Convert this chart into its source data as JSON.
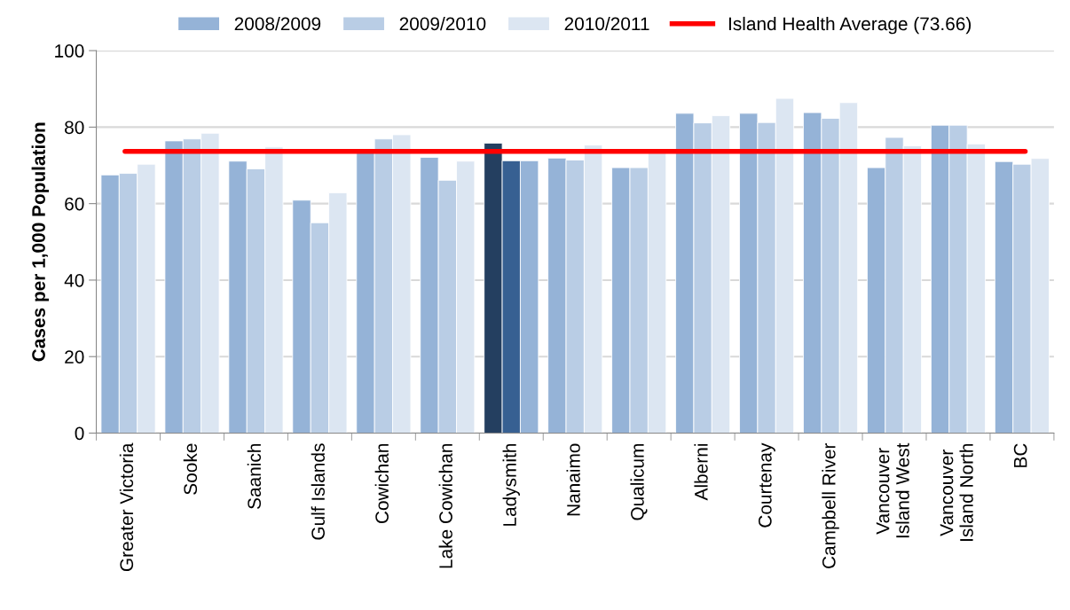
{
  "chart_data": {
    "type": "bar",
    "ylabel": "Cases per 1,000 Population",
    "categories": [
      "Greater Victoria",
      "Sooke",
      "Saanich",
      "Gulf Islands",
      "Cowichan",
      "Lake Cowichan",
      "Ladysmith",
      "Nanaimo",
      "Qualicum",
      "Alberni",
      "Courtenay",
      "Campbell River",
      "Vancouver\nIsland West",
      "Vancouver\nIsland North",
      "BC"
    ],
    "series": [
      {
        "name": "2008/2009",
        "color": "#95b3d7",
        "colors": [
          "#95b3d7",
          "#95b3d7",
          "#95b3d7",
          "#95b3d7",
          "#95b3d7",
          "#95b3d7",
          "#243f60",
          "#95b3d7",
          "#95b3d7",
          "#95b3d7",
          "#95b3d7",
          "#95b3d7",
          "#95b3d7",
          "#95b3d7",
          "#95b3d7"
        ],
        "values": [
          67.5,
          76.4,
          71.1,
          60.9,
          73.6,
          72.1,
          75.8,
          71.9,
          69.4,
          83.6,
          83.6,
          83.8,
          69.4,
          80.5,
          71.0
        ]
      },
      {
        "name": "2009/2010",
        "color": "#b9cde5",
        "colors": [
          "#b9cde5",
          "#b9cde5",
          "#b9cde5",
          "#b9cde5",
          "#b9cde5",
          "#b9cde5",
          "#376092",
          "#b9cde5",
          "#b9cde5",
          "#b9cde5",
          "#b9cde5",
          "#b9cde5",
          "#b9cde5",
          "#b9cde5",
          "#b9cde5"
        ],
        "values": [
          67.9,
          76.9,
          69.1,
          55.0,
          76.9,
          66.1,
          71.2,
          71.4,
          69.4,
          81.1,
          81.2,
          82.3,
          77.3,
          80.5,
          70.3
        ]
      },
      {
        "name": "2010/2011",
        "color": "#dce6f2",
        "colors": [
          "#dce6f2",
          "#dce6f2",
          "#dce6f2",
          "#dce6f2",
          "#dce6f2",
          "#dce6f2",
          "#95b3d7",
          "#dce6f2",
          "#dce6f2",
          "#dce6f2",
          "#dce6f2",
          "#dce6f2",
          "#dce6f2",
          "#dce6f2",
          "#dce6f2"
        ],
        "values": [
          70.3,
          78.4,
          74.8,
          62.8,
          78.0,
          71.1,
          71.2,
          75.3,
          73.2,
          83.0,
          87.5,
          86.4,
          75.1,
          75.6,
          71.8
        ]
      }
    ],
    "ref_lines": [
      {
        "axis": "y",
        "value": 73.66,
        "label": "Island Health Average (73.66)",
        "color": "#ff0000"
      }
    ],
    "ylim": [
      0,
      100
    ],
    "yticks": [
      0,
      20,
      40,
      60,
      80,
      100
    ],
    "grid": "y",
    "legend": "top"
  }
}
